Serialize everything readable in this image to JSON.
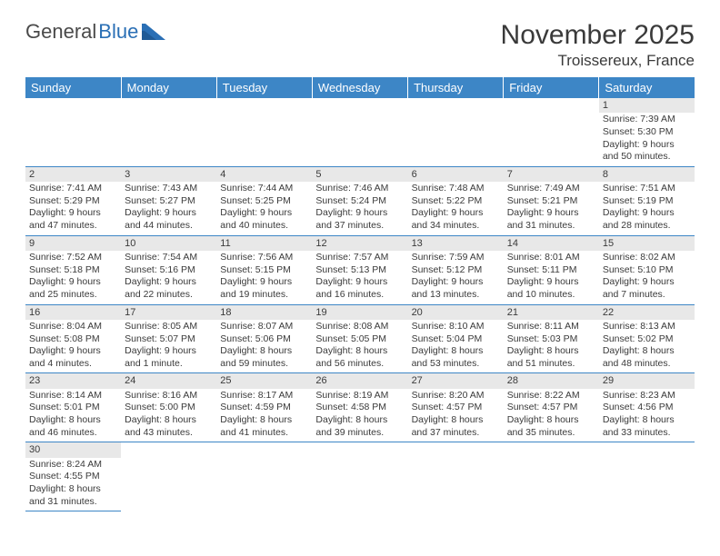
{
  "logo": {
    "text1": "General",
    "text2": "Blue"
  },
  "title": "November 2025",
  "location": "Troissereux, France",
  "weekdays": [
    "Sunday",
    "Monday",
    "Tuesday",
    "Wednesday",
    "Thursday",
    "Friday",
    "Saturday"
  ],
  "colors": {
    "header_bg": "#3d86c6",
    "header_fg": "#ffffff",
    "daynum_bg": "#e8e8e8",
    "rule": "#3d86c6",
    "text": "#3a3a3a",
    "logo_gray": "#4a4a4a",
    "logo_blue": "#2a6fb5"
  },
  "weeks": [
    [
      null,
      null,
      null,
      null,
      null,
      null,
      {
        "n": "1",
        "sr": "Sunrise: 7:39 AM",
        "ss": "Sunset: 5:30 PM",
        "dl": "Daylight: 9 hours and 50 minutes."
      }
    ],
    [
      {
        "n": "2",
        "sr": "Sunrise: 7:41 AM",
        "ss": "Sunset: 5:29 PM",
        "dl": "Daylight: 9 hours and 47 minutes."
      },
      {
        "n": "3",
        "sr": "Sunrise: 7:43 AM",
        "ss": "Sunset: 5:27 PM",
        "dl": "Daylight: 9 hours and 44 minutes."
      },
      {
        "n": "4",
        "sr": "Sunrise: 7:44 AM",
        "ss": "Sunset: 5:25 PM",
        "dl": "Daylight: 9 hours and 40 minutes."
      },
      {
        "n": "5",
        "sr": "Sunrise: 7:46 AM",
        "ss": "Sunset: 5:24 PM",
        "dl": "Daylight: 9 hours and 37 minutes."
      },
      {
        "n": "6",
        "sr": "Sunrise: 7:48 AM",
        "ss": "Sunset: 5:22 PM",
        "dl": "Daylight: 9 hours and 34 minutes."
      },
      {
        "n": "7",
        "sr": "Sunrise: 7:49 AM",
        "ss": "Sunset: 5:21 PM",
        "dl": "Daylight: 9 hours and 31 minutes."
      },
      {
        "n": "8",
        "sr": "Sunrise: 7:51 AM",
        "ss": "Sunset: 5:19 PM",
        "dl": "Daylight: 9 hours and 28 minutes."
      }
    ],
    [
      {
        "n": "9",
        "sr": "Sunrise: 7:52 AM",
        "ss": "Sunset: 5:18 PM",
        "dl": "Daylight: 9 hours and 25 minutes."
      },
      {
        "n": "10",
        "sr": "Sunrise: 7:54 AM",
        "ss": "Sunset: 5:16 PM",
        "dl": "Daylight: 9 hours and 22 minutes."
      },
      {
        "n": "11",
        "sr": "Sunrise: 7:56 AM",
        "ss": "Sunset: 5:15 PM",
        "dl": "Daylight: 9 hours and 19 minutes."
      },
      {
        "n": "12",
        "sr": "Sunrise: 7:57 AM",
        "ss": "Sunset: 5:13 PM",
        "dl": "Daylight: 9 hours and 16 minutes."
      },
      {
        "n": "13",
        "sr": "Sunrise: 7:59 AM",
        "ss": "Sunset: 5:12 PM",
        "dl": "Daylight: 9 hours and 13 minutes."
      },
      {
        "n": "14",
        "sr": "Sunrise: 8:01 AM",
        "ss": "Sunset: 5:11 PM",
        "dl": "Daylight: 9 hours and 10 minutes."
      },
      {
        "n": "15",
        "sr": "Sunrise: 8:02 AM",
        "ss": "Sunset: 5:10 PM",
        "dl": "Daylight: 9 hours and 7 minutes."
      }
    ],
    [
      {
        "n": "16",
        "sr": "Sunrise: 8:04 AM",
        "ss": "Sunset: 5:08 PM",
        "dl": "Daylight: 9 hours and 4 minutes."
      },
      {
        "n": "17",
        "sr": "Sunrise: 8:05 AM",
        "ss": "Sunset: 5:07 PM",
        "dl": "Daylight: 9 hours and 1 minute."
      },
      {
        "n": "18",
        "sr": "Sunrise: 8:07 AM",
        "ss": "Sunset: 5:06 PM",
        "dl": "Daylight: 8 hours and 59 minutes."
      },
      {
        "n": "19",
        "sr": "Sunrise: 8:08 AM",
        "ss": "Sunset: 5:05 PM",
        "dl": "Daylight: 8 hours and 56 minutes."
      },
      {
        "n": "20",
        "sr": "Sunrise: 8:10 AM",
        "ss": "Sunset: 5:04 PM",
        "dl": "Daylight: 8 hours and 53 minutes."
      },
      {
        "n": "21",
        "sr": "Sunrise: 8:11 AM",
        "ss": "Sunset: 5:03 PM",
        "dl": "Daylight: 8 hours and 51 minutes."
      },
      {
        "n": "22",
        "sr": "Sunrise: 8:13 AM",
        "ss": "Sunset: 5:02 PM",
        "dl": "Daylight: 8 hours and 48 minutes."
      }
    ],
    [
      {
        "n": "23",
        "sr": "Sunrise: 8:14 AM",
        "ss": "Sunset: 5:01 PM",
        "dl": "Daylight: 8 hours and 46 minutes."
      },
      {
        "n": "24",
        "sr": "Sunrise: 8:16 AM",
        "ss": "Sunset: 5:00 PM",
        "dl": "Daylight: 8 hours and 43 minutes."
      },
      {
        "n": "25",
        "sr": "Sunrise: 8:17 AM",
        "ss": "Sunset: 4:59 PM",
        "dl": "Daylight: 8 hours and 41 minutes."
      },
      {
        "n": "26",
        "sr": "Sunrise: 8:19 AM",
        "ss": "Sunset: 4:58 PM",
        "dl": "Daylight: 8 hours and 39 minutes."
      },
      {
        "n": "27",
        "sr": "Sunrise: 8:20 AM",
        "ss": "Sunset: 4:57 PM",
        "dl": "Daylight: 8 hours and 37 minutes."
      },
      {
        "n": "28",
        "sr": "Sunrise: 8:22 AM",
        "ss": "Sunset: 4:57 PM",
        "dl": "Daylight: 8 hours and 35 minutes."
      },
      {
        "n": "29",
        "sr": "Sunrise: 8:23 AM",
        "ss": "Sunset: 4:56 PM",
        "dl": "Daylight: 8 hours and 33 minutes."
      }
    ],
    [
      {
        "n": "30",
        "sr": "Sunrise: 8:24 AM",
        "ss": "Sunset: 4:55 PM",
        "dl": "Daylight: 8 hours and 31 minutes."
      },
      null,
      null,
      null,
      null,
      null,
      null
    ]
  ]
}
